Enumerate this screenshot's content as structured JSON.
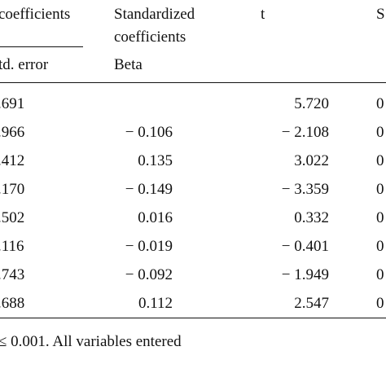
{
  "header": {
    "unstd_coeff_label": "coefficients",
    "std_coeff_line1": "Standardized",
    "std_coeff_line2": "coefficients",
    "t_label": "t",
    "sig_label": "S",
    "std_error_label": "td. error",
    "beta_label": "Beta"
  },
  "rows": [
    {
      "std_error": ".691",
      "beta": "",
      "t": "5.720",
      "sig": "0"
    },
    {
      "std_error": ".966",
      "beta": "− 0.106",
      "t": "− 2.108",
      "sig": "0"
    },
    {
      "std_error": ".412",
      "beta": "0.135",
      "t": "3.022",
      "sig": "0"
    },
    {
      "std_error": ".170",
      "beta": "− 0.149",
      "t": "− 3.359",
      "sig": "0"
    },
    {
      "std_error": ".502",
      "beta": "0.016",
      "t": "0.332",
      "sig": "0"
    },
    {
      "std_error": ".116",
      "beta": "− 0.019",
      "t": "− 0.401",
      "sig": "0"
    },
    {
      "std_error": ".743",
      "beta": "− 0.092",
      "t": "− 1.949",
      "sig": "0"
    },
    {
      "std_error": ".688",
      "beta": "0.112",
      "t": "2.547",
      "sig": "0"
    }
  ],
  "footnote": "≤ 0.001. All variables entered"
}
